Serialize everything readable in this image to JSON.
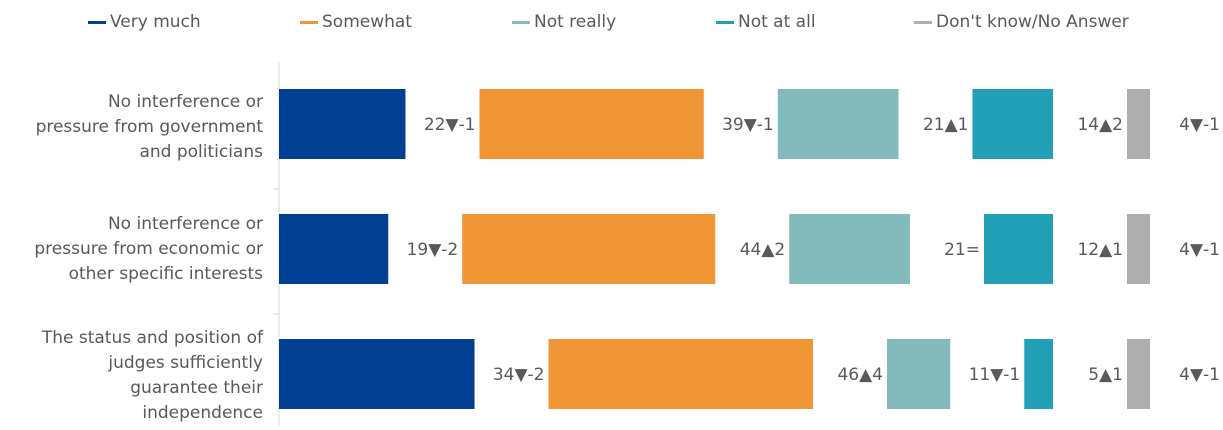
{
  "chart_data": {
    "type": "bar",
    "orientation": "horizontal",
    "stacking": "side-by-side segments per category",
    "legend_position": "top",
    "grid": false,
    "categories": [
      "No interference or pressure from government and politicians",
      "No interference or pressure from economic or other specific interests",
      "The status and position of judges sufficiently guarantee their independence"
    ],
    "category_lines": [
      [
        "No interference or",
        "pressure from government",
        "and politicians"
      ],
      [
        "No interference or",
        "pressure from economic or",
        "other specific interests"
      ],
      [
        "The status and position of",
        "judges sufficiently",
        "guarantee their",
        "independence"
      ]
    ],
    "series": [
      {
        "name": "Very much",
        "color": "#003F91",
        "values": [
          22,
          19,
          34
        ],
        "labels": [
          "22▼-1",
          "19▼-2",
          "34▼-2"
        ]
      },
      {
        "name": "Somewhat",
        "color": "#F09637",
        "values": [
          39,
          44,
          46
        ],
        "labels": [
          "39▼-1",
          "44▲2",
          "46▲4"
        ]
      },
      {
        "name": "Not really",
        "color": "#83BBBC",
        "values": [
          21,
          21,
          11
        ],
        "labels": [
          "21▲1",
          "21=",
          "11▼-1"
        ]
      },
      {
        "name": "Not at all",
        "color": "#22A0B8",
        "values": [
          14,
          12,
          5
        ],
        "labels": [
          "14▲2",
          "12▲1",
          "5▲1"
        ]
      },
      {
        "name": "Don't know/No Answer",
        "color": "#AEAEAE",
        "values": [
          4,
          4,
          4
        ],
        "labels": [
          "4▼-1",
          "4▼-1",
          "4▼-1"
        ]
      }
    ]
  }
}
